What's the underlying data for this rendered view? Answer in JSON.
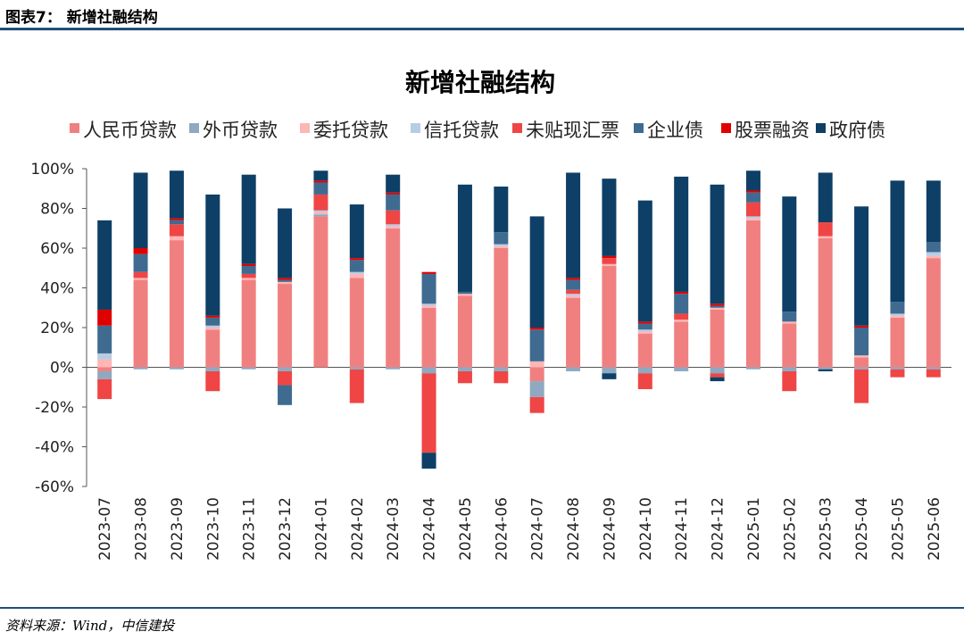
{
  "header": {
    "label": "图表7：  新增社融结构"
  },
  "footer": {
    "source": "资料来源：Wind，中信建投"
  },
  "chart_data": {
    "type": "bar",
    "stacked": true,
    "title": "新增社融结构",
    "xlabel": "",
    "ylabel": "",
    "ylim": [
      -60,
      100
    ],
    "yticks": [
      "100%",
      "80%",
      "60%",
      "40%",
      "20%",
      "0%",
      "-20%",
      "-40%",
      "-60%"
    ],
    "unit": "%",
    "legend_position": "top",
    "grid": false,
    "categories": [
      "2023-07",
      "2023-08",
      "2023-09",
      "2023-10",
      "2023-11",
      "2023-12",
      "2024-01",
      "2024-02",
      "2024-03",
      "2024-04",
      "2024-05",
      "2024-06",
      "2024-07",
      "2024-08",
      "2024-09",
      "2024-10",
      "2024-11",
      "2024-12",
      "2025-01",
      "2025-02",
      "2025-03",
      "2025-04",
      "2025-05",
      "2025-06"
    ],
    "series": [
      {
        "name": "人民币贷款",
        "color": "#f08080",
        "values": [
          -2,
          44,
          64,
          19,
          44,
          42,
          76,
          45,
          70,
          30,
          36,
          60,
          -7,
          35,
          51,
          17,
          23,
          29,
          74,
          22,
          65,
          5,
          25,
          55
        ]
      },
      {
        "name": "外币贷款",
        "color": "#8ea9c1",
        "values": [
          -4,
          -1,
          -1,
          -2,
          -1,
          -2,
          1,
          -1,
          -1,
          -3,
          -2,
          -2,
          -8,
          -2,
          -3,
          -3,
          -2,
          -3,
          -1,
          -2,
          -1,
          -1,
          -1,
          -1
        ]
      },
      {
        "name": "委托贷款",
        "color": "#ffb6b6",
        "values": [
          4,
          1,
          2,
          1,
          1,
          1,
          1,
          2,
          1,
          1,
          1,
          1,
          3,
          1,
          1,
          1,
          1,
          1,
          1,
          1,
          1,
          1,
          1,
          1
        ]
      },
      {
        "name": "信托贷款",
        "color": "#b8cce4",
        "values": [
          3,
          0,
          0,
          1,
          0,
          0,
          1,
          1,
          1,
          1,
          0,
          1,
          0,
          1,
          0,
          1,
          0,
          0,
          1,
          0,
          0,
          0,
          1,
          2
        ]
      },
      {
        "name": "未贴现汇票",
        "color": "#f04545",
        "values": [
          -10,
          3,
          6,
          -10,
          2,
          -7,
          8,
          -17,
          7,
          -40,
          -6,
          -6,
          -8,
          2,
          3,
          -8,
          3,
          -2,
          7,
          -10,
          7,
          -17,
          -4,
          -4
        ]
      },
      {
        "name": "企业债",
        "color": "#3f6b91",
        "values": [
          14,
          9,
          2,
          4,
          4,
          1,
          6,
          6,
          8,
          15,
          1,
          6,
          16,
          5,
          0,
          3,
          10,
          1,
          5,
          5,
          0,
          14,
          6,
          5
        ]
      },
      {
        "name": "股票融资",
        "color": "#e00000",
        "values": [
          8,
          3,
          1,
          1,
          1,
          1,
          1,
          1,
          1,
          1,
          0,
          0,
          1,
          1,
          1,
          1,
          1,
          1,
          1,
          0,
          0,
          1,
          0,
          0
        ]
      },
      {
        "name": "政府债",
        "color": "#0e3f66",
        "values": [
          45,
          38,
          24,
          61,
          45,
          35,
          5,
          27,
          9,
          0,
          54,
          23,
          56,
          53,
          39,
          61,
          58,
          60,
          10,
          58,
          25,
          60,
          61,
          31
        ]
      }
    ],
    "extra_negative": [
      {
        "series": "企业债",
        "values": [
          0,
          0,
          0,
          0,
          0,
          -10,
          0,
          0,
          0,
          0,
          0,
          0,
          0,
          0,
          0,
          0,
          0,
          0,
          0,
          0,
          0,
          0,
          0,
          0
        ]
      },
      {
        "series": "政府债",
        "values": [
          0,
          0,
          0,
          0,
          0,
          0,
          0,
          0,
          0,
          -8,
          0,
          0,
          0,
          0,
          -3,
          0,
          0,
          -2,
          0,
          0,
          -1,
          0,
          0,
          0
        ]
      }
    ]
  }
}
